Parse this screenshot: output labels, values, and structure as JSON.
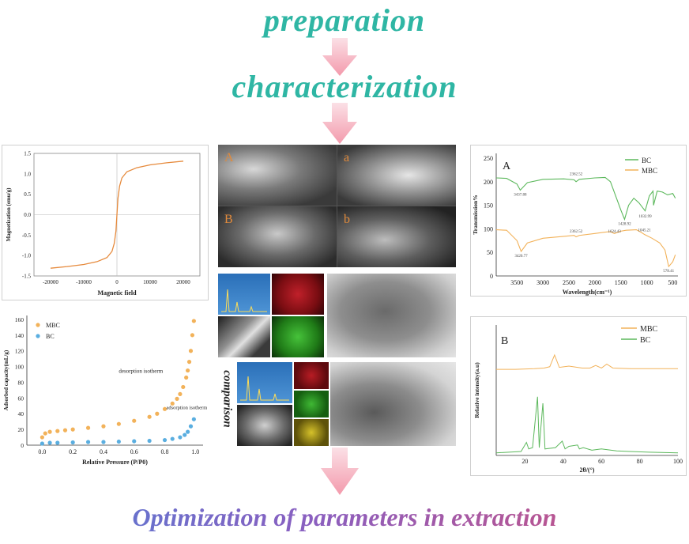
{
  "headings": {
    "preparation": "preparation",
    "characterization": "characterization",
    "optimization": "Optimization of parameters in extraction",
    "comparison": "comparison"
  },
  "colors": {
    "teal": "#2fb6a4",
    "arrow": "#f5a0b0",
    "orange": "#f2b25a",
    "blue": "#5aaee0",
    "green": "#5cb85c",
    "curve_orange": "#e68a3c"
  },
  "mag_chart": {
    "type": "line",
    "xlabel": "Magnetic field",
    "ylabel": "Magnetization (emu/g)",
    "xlim": [
      -25000,
      25000
    ],
    "ylim": [
      -1.5,
      1.5
    ],
    "xticks": [
      "-20000",
      "-10000",
      "0",
      "10000",
      "20000"
    ],
    "yticks": [
      "1.5",
      "1.0",
      "0.5",
      "0.0",
      "-0.5",
      "-1.0",
      "-1.5"
    ],
    "x": [
      -20000,
      -15000,
      -10000,
      -6000,
      -3000,
      -1500,
      -800,
      -300,
      0,
      300,
      800,
      1500,
      3000,
      6000,
      10000,
      15000,
      20000
    ],
    "y": [
      -1.31,
      -1.27,
      -1.22,
      -1.15,
      -1.05,
      -0.9,
      -0.7,
      -0.4,
      0.0,
      0.4,
      0.7,
      0.9,
      1.05,
      1.15,
      1.22,
      1.27,
      1.31
    ]
  },
  "bet_chart": {
    "type": "scatter",
    "xlabel": "Relative Pressure (P/P0)",
    "ylabel": "Adsorbed capacity(mL/g)",
    "xlim": [
      -0.1,
      1.05
    ],
    "ylim": [
      0,
      165
    ],
    "xticks": [
      "0.0",
      "0.2",
      "0.4",
      "0.6",
      "0.8",
      "1.0"
    ],
    "yticks": [
      "0",
      "20",
      "40",
      "60",
      "80",
      "100",
      "120",
      "140",
      "160"
    ],
    "legend": [
      "MBC",
      "BC"
    ],
    "annotations": [
      "desorption isotherm",
      "adsorption isotherm"
    ],
    "series": [
      {
        "name": "MBC",
        "x": [
          0.0,
          0.02,
          0.05,
          0.1,
          0.15,
          0.2,
          0.3,
          0.4,
          0.5,
          0.6,
          0.7,
          0.75,
          0.8,
          0.85,
          0.88,
          0.9,
          0.92,
          0.94,
          0.95,
          0.96,
          0.97,
          0.98,
          0.99
        ],
        "y": [
          10,
          15,
          17,
          18,
          19,
          20,
          22,
          24,
          27,
          31,
          36,
          40,
          46,
          53,
          59,
          65,
          74,
          86,
          95,
          106,
          120,
          140,
          158
        ]
      },
      {
        "name": "BC",
        "x": [
          0.0,
          0.05,
          0.1,
          0.2,
          0.3,
          0.4,
          0.5,
          0.6,
          0.7,
          0.8,
          0.85,
          0.9,
          0.93,
          0.95,
          0.97,
          0.99
        ],
        "y": [
          2,
          3,
          3,
          3.5,
          4,
          4,
          4.5,
          5,
          5.5,
          6.5,
          8,
          10,
          13,
          17,
          24,
          33
        ]
      }
    ]
  },
  "ftir_chart": {
    "type": "line",
    "panel_label": "A",
    "xlabel": "Wavelength(cm⁻¹)",
    "ylabel": "Transmission%",
    "xlim": [
      3900,
      400
    ],
    "ylim": [
      0,
      260
    ],
    "xticks": [
      "3500",
      "3000",
      "2500",
      "2000",
      "1500",
      "1000",
      "500"
    ],
    "yticks": [
      "0",
      "50",
      "100",
      "150",
      "200",
      "250"
    ],
    "legend": [
      "BC",
      "MBC"
    ],
    "peaks_bc": [
      "3437.88",
      "2362.52",
      "1428.92",
      "1032.99"
    ],
    "peaks_mbc": [
      "3420.77",
      "2362.52",
      "1624.43",
      "1045.21",
      "578.41"
    ],
    "series": [
      {
        "name": "BC",
        "x": [
          3900,
          3700,
          3500,
          3437,
          3300,
          3000,
          2600,
          2400,
          2362,
          2300,
          2000,
          1800,
          1700,
          1600,
          1500,
          1428,
          1350,
          1250,
          1150,
          1032,
          950,
          880,
          870,
          800,
          700,
          600,
          500,
          450
        ],
        "y": [
          208,
          207,
          195,
          182,
          198,
          205,
          206,
          204,
          200,
          205,
          208,
          209,
          200,
          170,
          140,
          120,
          150,
          165,
          155,
          138,
          170,
          180,
          150,
          180,
          178,
          172,
          175,
          165
        ]
      },
      {
        "name": "MBC",
        "x": [
          3900,
          3700,
          3500,
          3420,
          3300,
          3000,
          2600,
          2400,
          2362,
          2300,
          2000,
          1800,
          1700,
          1624,
          1500,
          1400,
          1200,
          1100,
          1045,
          900,
          750,
          650,
          578,
          500,
          450
        ],
        "y": [
          98,
          97,
          75,
          52,
          70,
          80,
          84,
          86,
          83,
          86,
          90,
          93,
          94,
          90,
          95,
          97,
          98,
          92,
          88,
          80,
          70,
          55,
          20,
          30,
          45
        ]
      }
    ]
  },
  "xrd_chart": {
    "type": "line",
    "panel_label": "B",
    "xlabel": "2θ/(°)",
    "ylabel": "Relative intensity(a.u)",
    "xlim": [
      5,
      100
    ],
    "xticks": [
      "20",
      "40",
      "60",
      "80",
      "100"
    ],
    "legend": [
      "MBC",
      "BC"
    ],
    "series": [
      {
        "name": "MBC",
        "x": [
          5,
          15,
          25,
          30,
          33,
          35.5,
          38,
          43,
          50,
          54,
          57,
          60,
          62.8,
          66,
          75,
          90,
          100
        ],
        "y": [
          0.66,
          0.66,
          0.665,
          0.67,
          0.68,
          0.77,
          0.675,
          0.685,
          0.67,
          0.67,
          0.69,
          0.67,
          0.7,
          0.67,
          0.665,
          0.665,
          0.665
        ]
      },
      {
        "name": "BC",
        "x": [
          5,
          18,
          20.8,
          22,
          24,
          26.6,
          27.5,
          29.4,
          30.5,
          36,
          39.5,
          41,
          43,
          47.5,
          48.5,
          50.5,
          55,
          60,
          68,
          75,
          85,
          100
        ],
        "y": [
          0.02,
          0.03,
          0.1,
          0.05,
          0.06,
          0.45,
          0.06,
          0.4,
          0.05,
          0.06,
          0.11,
          0.05,
          0.07,
          0.08,
          0.05,
          0.06,
          0.04,
          0.05,
          0.035,
          0.03,
          0.025,
          0.02
        ]
      }
    ]
  },
  "sem": {
    "labels": [
      "A",
      "a",
      "B",
      "b"
    ]
  }
}
